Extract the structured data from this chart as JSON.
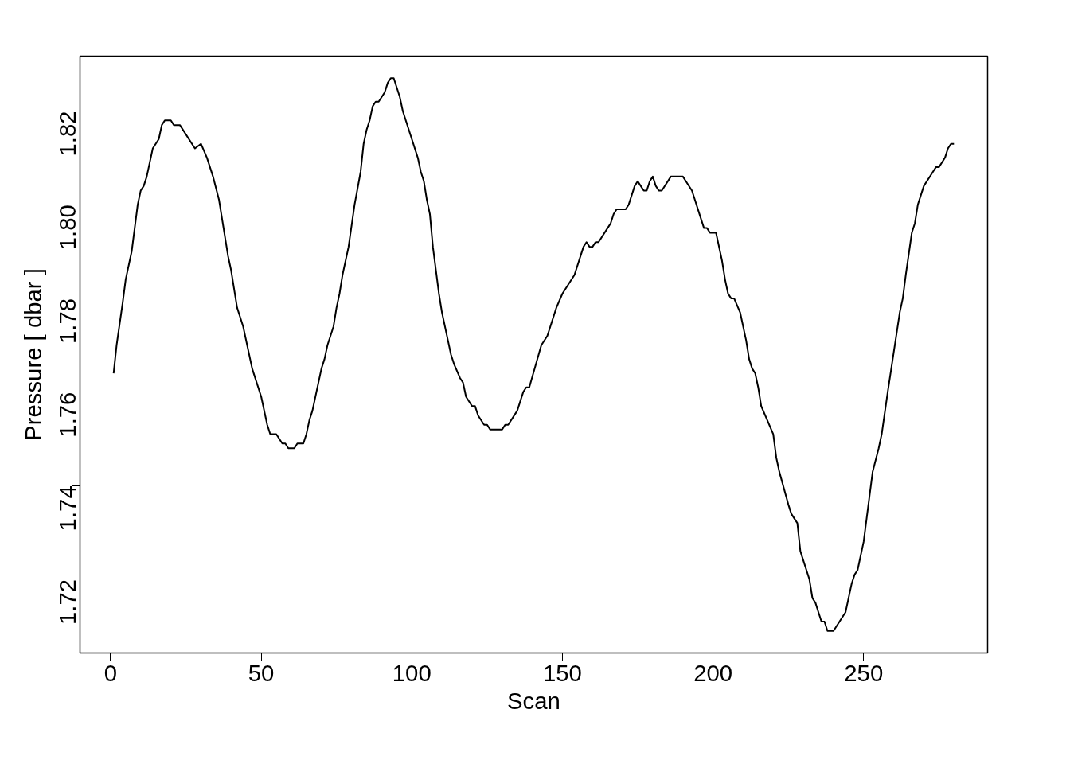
{
  "chart_data": {
    "type": "line",
    "xlabel": "Scan",
    "ylabel": "Pressure [ dbar ]",
    "x": [
      1,
      2,
      4,
      5,
      7,
      9,
      10,
      11,
      12,
      14,
      16,
      17,
      18,
      20,
      21,
      23,
      28,
      30,
      32,
      34,
      36,
      39,
      40,
      42,
      44,
      47,
      50,
      52,
      53,
      55,
      57,
      58,
      59,
      61,
      62,
      64,
      65,
      66,
      67,
      70,
      71,
      72,
      74,
      75,
      76,
      77,
      79,
      81,
      83,
      84,
      85,
      86,
      87,
      88,
      89,
      91,
      92,
      93,
      94,
      96,
      97,
      100,
      102,
      103,
      104,
      105,
      106,
      107,
      108,
      109,
      110,
      112,
      113,
      114,
      116,
      117,
      118,
      120,
      121,
      122,
      124,
      125,
      126,
      130,
      131,
      132,
      135,
      137,
      138,
      139,
      143,
      145,
      146,
      148,
      150,
      154,
      156,
      157,
      158,
      159,
      160,
      161,
      162,
      165,
      166,
      167,
      168,
      171,
      172,
      173,
      174,
      175,
      176,
      177,
      178,
      179,
      180,
      181,
      182,
      183,
      186,
      190,
      191,
      193,
      194,
      196,
      197,
      198,
      199,
      201,
      203,
      204,
      205,
      206,
      207,
      209,
      211,
      212,
      213,
      214,
      215,
      216,
      218,
      220,
      221,
      222,
      225,
      226,
      228,
      229,
      232,
      233,
      234,
      235,
      236,
      237,
      238,
      240,
      242,
      244,
      245,
      246,
      247,
      248,
      249,
      250,
      251,
      253,
      255,
      256,
      258,
      262,
      263,
      264,
      266,
      267,
      268,
      269,
      270,
      273,
      274,
      275,
      277,
      278,
      279,
      280
    ],
    "values": [
      1.764,
      1.77,
      1.779,
      1.784,
      1.79,
      1.8,
      1.803,
      1.804,
      1.806,
      1.812,
      1.814,
      1.817,
      1.818,
      1.818,
      1.817,
      1.817,
      1.812,
      1.813,
      1.81,
      1.806,
      1.801,
      1.789,
      1.786,
      1.778,
      1.774,
      1.765,
      1.759,
      1.753,
      1.751,
      1.751,
      1.749,
      1.749,
      1.748,
      1.748,
      1.749,
      1.749,
      1.751,
      1.754,
      1.756,
      1.765,
      1.767,
      1.77,
      1.774,
      1.778,
      1.781,
      1.785,
      1.791,
      1.8,
      1.807,
      1.813,
      1.816,
      1.818,
      1.821,
      1.822,
      1.822,
      1.824,
      1.826,
      1.827,
      1.827,
      1.823,
      1.82,
      1.814,
      1.81,
      1.807,
      1.805,
      1.801,
      1.798,
      1.791,
      1.786,
      1.781,
      1.777,
      1.771,
      1.768,
      1.766,
      1.763,
      1.762,
      1.759,
      1.757,
      1.757,
      1.755,
      1.753,
      1.753,
      1.752,
      1.752,
      1.753,
      1.753,
      1.756,
      1.76,
      1.761,
      1.761,
      1.77,
      1.772,
      1.774,
      1.778,
      1.781,
      1.785,
      1.789,
      1.791,
      1.792,
      1.791,
      1.791,
      1.792,
      1.792,
      1.795,
      1.796,
      1.798,
      1.799,
      1.799,
      1.8,
      1.802,
      1.804,
      1.805,
      1.804,
      1.803,
      1.803,
      1.805,
      1.806,
      1.804,
      1.803,
      1.803,
      1.806,
      1.806,
      1.805,
      1.803,
      1.801,
      1.797,
      1.795,
      1.795,
      1.794,
      1.794,
      1.788,
      1.784,
      1.781,
      1.78,
      1.78,
      1.777,
      1.771,
      1.767,
      1.765,
      1.764,
      1.761,
      1.757,
      1.754,
      1.751,
      1.746,
      1.743,
      1.736,
      1.734,
      1.732,
      1.726,
      1.72,
      1.716,
      1.715,
      1.713,
      1.711,
      1.711,
      1.709,
      1.709,
      1.711,
      1.713,
      1.716,
      1.719,
      1.721,
      1.722,
      1.725,
      1.728,
      1.733,
      1.743,
      1.748,
      1.751,
      1.76,
      1.777,
      1.78,
      1.785,
      1.794,
      1.796,
      1.8,
      1.802,
      1.804,
      1.807,
      1.808,
      1.808,
      1.81,
      1.812,
      1.813,
      1.813
    ],
    "color": "#000000",
    "xlim": [
      -10.16,
      291.16
    ],
    "ylim": [
      1.70428,
      1.83172
    ],
    "xticks": [
      0,
      50,
      100,
      150,
      200,
      250
    ],
    "yticks": [
      1.72,
      1.74,
      1.76,
      1.78,
      {
        "value": 1.8,
        "label": "1.80"
      },
      1.82
    ],
    "grid": false,
    "marker": "none",
    "line_style": "solid"
  }
}
